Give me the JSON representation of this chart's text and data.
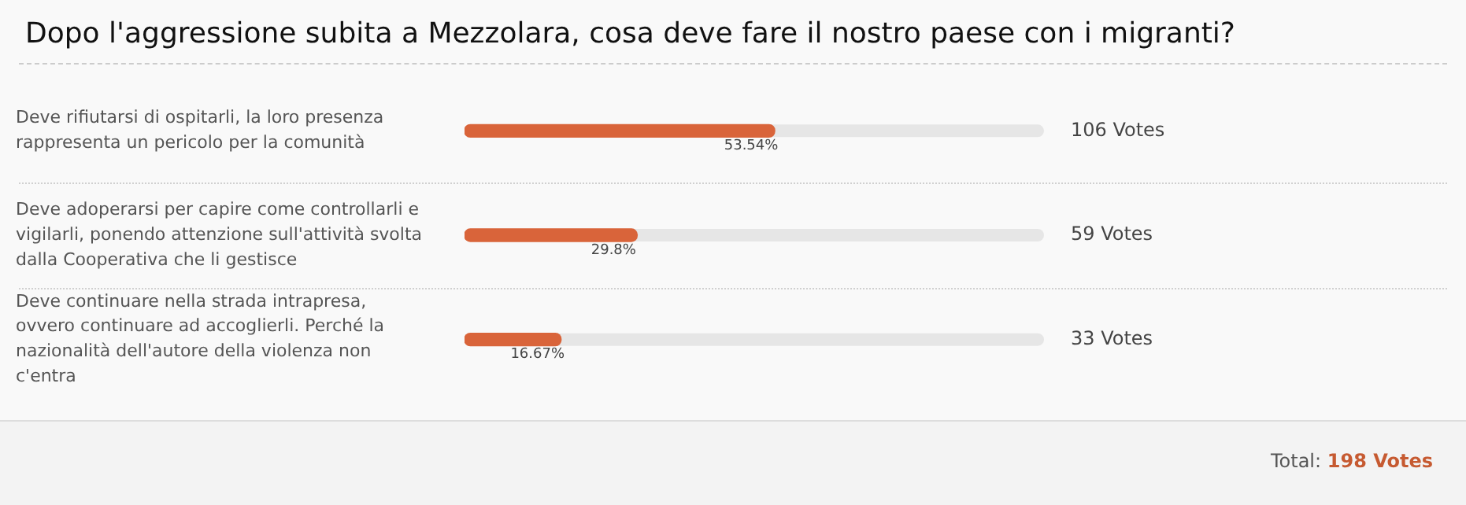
{
  "chart_data": {
    "type": "bar",
    "orientation": "horizontal",
    "title": "Dopo l'aggressione subita a Mezzolara, cosa deve fare il nostro paese con i migranti?",
    "categories": [
      "Deve rifiutarsi di ospitarli, la loro presenza rappresenta un pericolo per la comunità",
      "Deve adoperarsi per capire come controllarli e vigilarli, ponendo attenzione sull'attività svolta dalla Cooperativa che li gestisce",
      "Deve continuare nella strada intrapresa, ovvero continuare ad accoglierli. Perché la nazionalità dell'autore della violenza non c'entra"
    ],
    "values": [
      53.54,
      29.8,
      16.67
    ],
    "color": "#d9643a",
    "xlim": [
      0,
      100
    ],
    "value_labels": [
      "53.54%",
      "29.8%",
      "16.67%"
    ],
    "annotations": [
      "106 Votes",
      "59 Votes",
      "33 Votes",
      "Total: 198 Votes"
    ],
    "grid": false,
    "legend": false,
    "tick_labels": "y"
  }
}
